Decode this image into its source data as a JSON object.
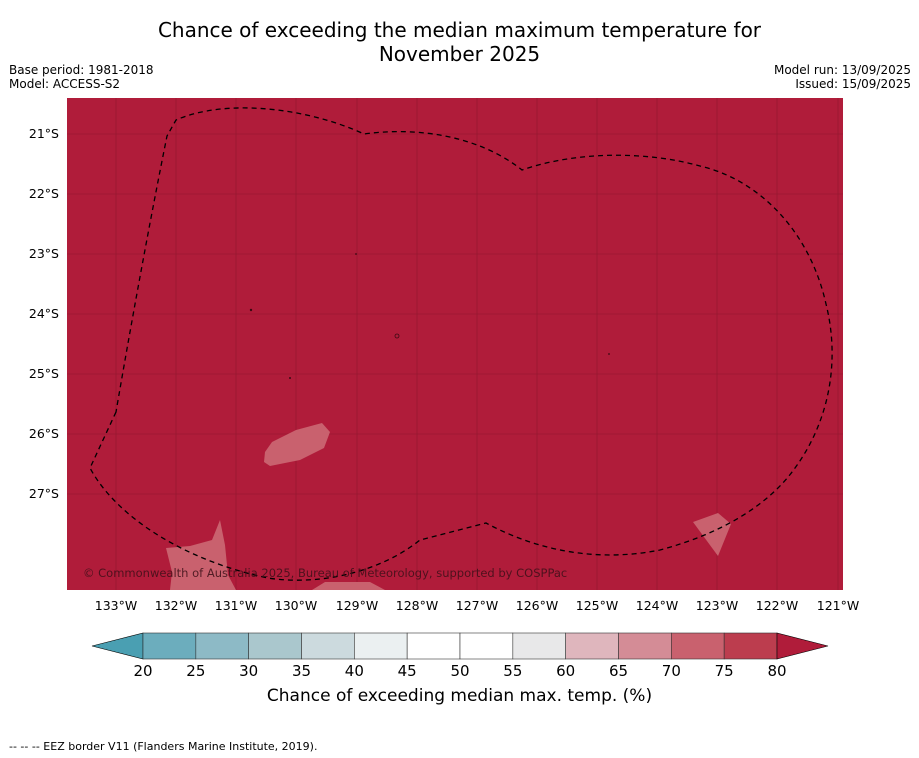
{
  "title": {
    "line1": "Chance of exceeding the median maximum temperature for",
    "line2": "November 2025"
  },
  "meta": {
    "base_period": "Base period: 1981-2018",
    "model": "Model: ACCESS-S2",
    "model_run": "Model run: 13/09/2025",
    "issued": "Issued: 15/09/2025"
  },
  "map": {
    "background_color": "#B01C3A",
    "copyright": "© Commonwealth of Australia 2025, Bureau of Meteorology, supported by COSPPac",
    "lat_labels": [
      "21°S",
      "22°S",
      "23°S",
      "24°S",
      "25°S",
      "26°S",
      "27°S"
    ],
    "lon_labels": [
      "133°W",
      "132°W",
      "131°W",
      "130°W",
      "129°W",
      "128°W",
      "127°W",
      "126°W",
      "125°W",
      "124°W",
      "123°W",
      "122°W",
      "121°W"
    ]
  },
  "colorbar": {
    "ticks": [
      "20",
      "25",
      "30",
      "35",
      "40",
      "45",
      "50",
      "55",
      "60",
      "65",
      "70",
      "75",
      "80"
    ],
    "colors": [
      "#6CADBD",
      "#8DBAC6",
      "#AAC7CD",
      "#CCDADE",
      "#EBF0F1",
      "#FFFFFF",
      "#FFFFFF",
      "#E8E8E9",
      "#DFB6BD",
      "#D48C96",
      "#C9616E",
      "#BC3D4E"
    ],
    "low_color": "#4A9FB2",
    "high_color": "#B01C3A",
    "label": "Chance of exceeding median max. temp. (%)"
  },
  "footer": {
    "legend": "--  --  -- EEZ border V11 (Flanders Marine Institute, 2019)."
  }
}
